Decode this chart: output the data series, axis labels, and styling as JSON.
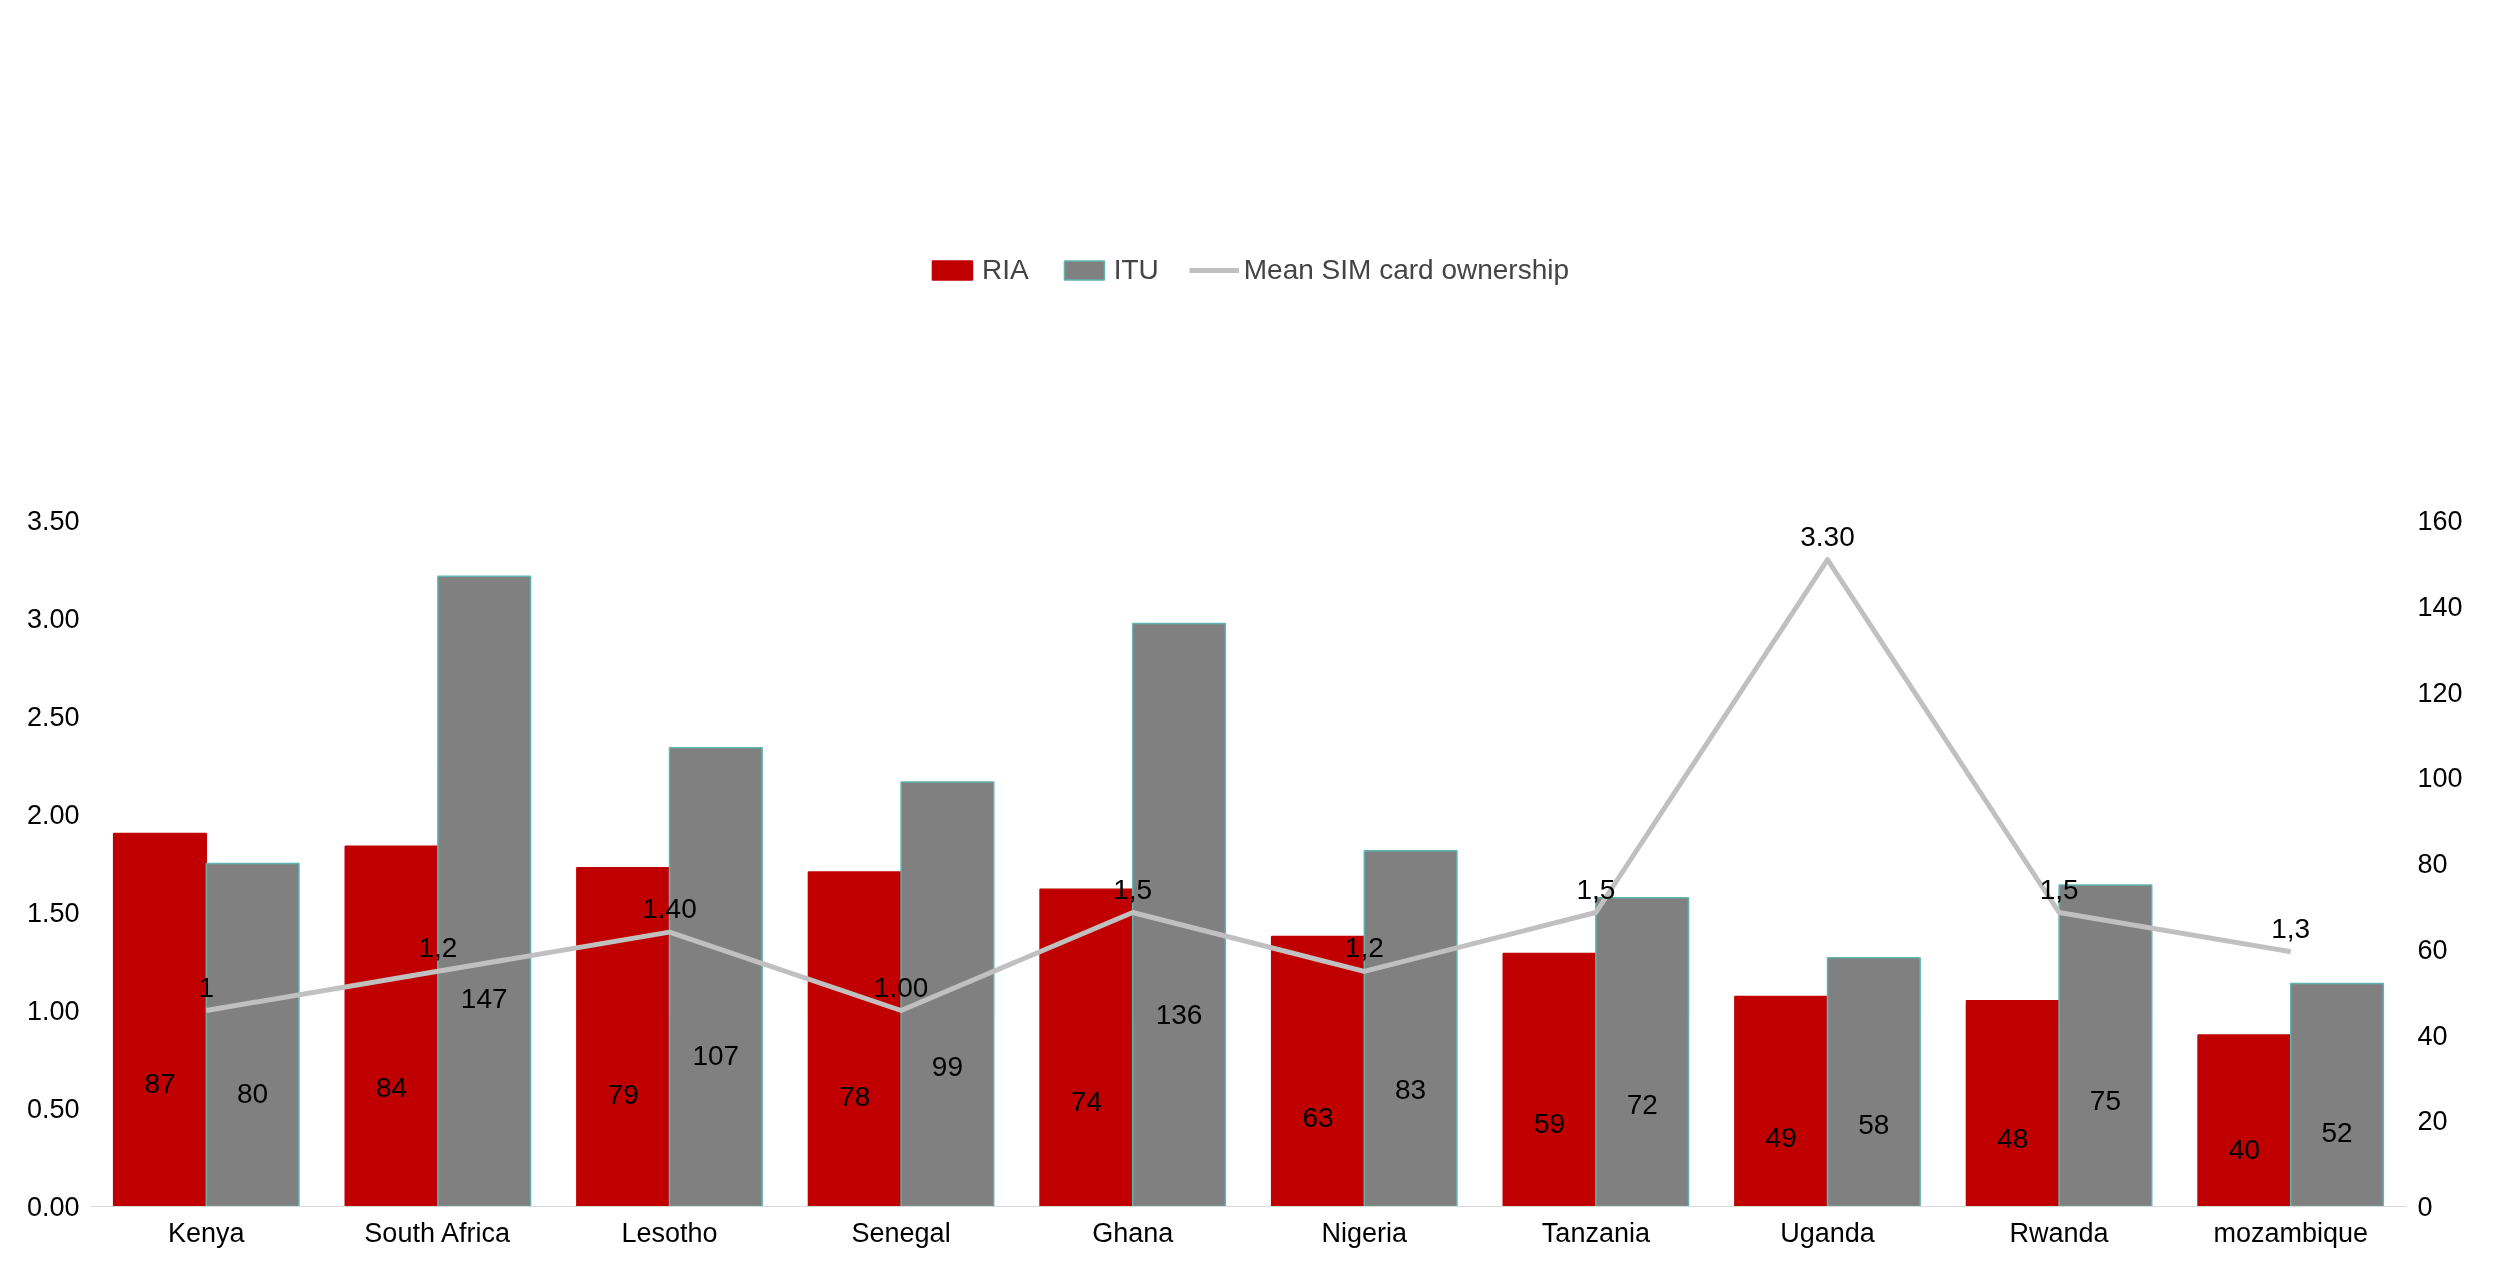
{
  "chart_data": {
    "type": "bar",
    "categories": [
      "Kenya",
      "South Africa",
      "Lesotho",
      "Senegal",
      "Ghana",
      "Nigeria",
      "Tanzania",
      "Uganda",
      "Rwanda",
      "mozambique"
    ],
    "series": [
      {
        "name": "RIA",
        "axis": "y2",
        "color": "#c00000",
        "values": [
          87,
          84,
          79,
          78,
          74,
          63,
          59,
          49,
          48,
          40
        ]
      },
      {
        "name": "ITU",
        "axis": "y2",
        "color": "#808080",
        "values": [
          80,
          147,
          107,
          99,
          136,
          83,
          72,
          58,
          75,
          52
        ]
      },
      {
        "name": "Mean SIM card ownership",
        "type": "line",
        "color": "#c0c0c0",
        "values": [
          1,
          1.2,
          1.4,
          1.0,
          1.5,
          1.2,
          1.5,
          3.3,
          1.5,
          1.3
        ],
        "value_labels": [
          "1",
          "1,2",
          "1.40",
          "1.00",
          "1,5",
          "1,2",
          "1,5",
          "3.30",
          "1,5",
          "1,3"
        ]
      }
    ],
    "data_labels": true,
    "ylim": [
      0,
      3.5
    ],
    "yticks": [
      {
        "value": 0,
        "label": "0.00"
      },
      {
        "value": 0.5,
        "label": "0.50"
      },
      {
        "value": 1,
        "label": "1.00"
      },
      {
        "value": 1.5,
        "label": "1.50"
      },
      {
        "value": 2,
        "label": "2.00"
      },
      {
        "value": 2.5,
        "label": "2.50"
      },
      {
        "value": 3,
        "label": "3.00"
      },
      {
        "value": 3.5,
        "label": "3.50"
      }
    ],
    "y2lim": [
      0,
      160
    ],
    "y2ticks": [
      0,
      20,
      40,
      60,
      80,
      100,
      120,
      140,
      160
    ],
    "legend": "top"
  }
}
